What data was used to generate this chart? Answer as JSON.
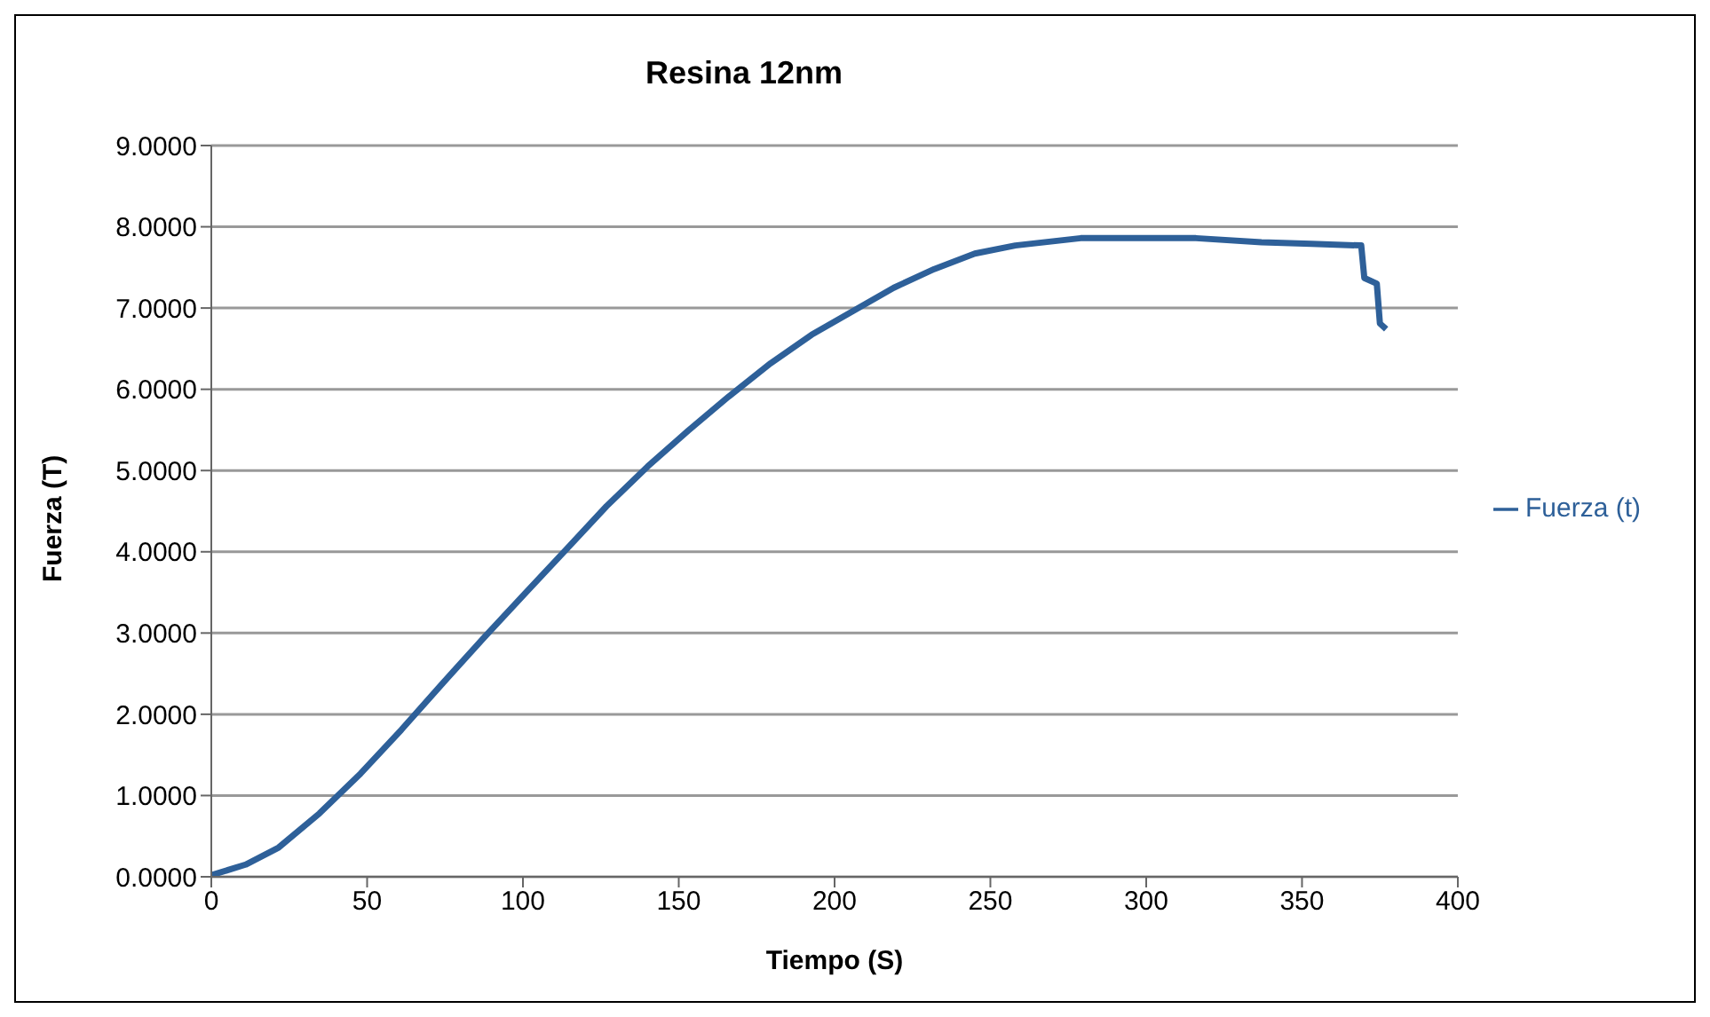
{
  "chart_data": {
    "type": "line",
    "title": "Resina 12nm",
    "xlabel": "Tiempo (S)",
    "ylabel": "Fuerza (T)",
    "xlim": [
      0,
      400
    ],
    "xticks": [
      0,
      50,
      100,
      150,
      200,
      250,
      300,
      350,
      400
    ],
    "ylim": [
      0,
      9
    ],
    "yticks": [
      {
        "value": 0,
        "label": "0.0000"
      },
      {
        "value": 1,
        "label": "1.0000"
      },
      {
        "value": 2,
        "label": "2.0000"
      },
      {
        "value": 3,
        "label": "3.0000"
      },
      {
        "value": 4,
        "label": "4.0000"
      },
      {
        "value": 5,
        "label": "5.0000"
      },
      {
        "value": 6,
        "label": "6.0000"
      },
      {
        "value": 7,
        "label": "7.0000"
      },
      {
        "value": 8,
        "label": "8.0000"
      },
      {
        "value": 9,
        "label": "9.0000"
      }
    ],
    "grid": "y",
    "legend": "right",
    "marker": "none",
    "line_style": "solid",
    "x": [
      0,
      11,
      21.6,
      34.7,
      47.9,
      61,
      74.2,
      87.4,
      100.5,
      113.7,
      126.8,
      140,
      153,
      166,
      179.5,
      192.6,
      205.8,
      219,
      232,
      245,
      258,
      279,
      316,
      337,
      353,
      369,
      370,
      374,
      375,
      377
    ],
    "series": [
      {
        "name": "Fuerza (t)",
        "color": "#2e6099",
        "values": [
          0.02,
          0.15,
          0.36,
          0.78,
          1.27,
          1.81,
          2.38,
          2.94,
          3.48,
          4.02,
          4.56,
          5.05,
          5.49,
          5.91,
          6.32,
          6.67,
          6.96,
          7.25,
          7.48,
          7.67,
          7.77,
          7.86,
          7.86,
          7.81,
          7.79,
          7.77,
          7.37,
          7.3,
          6.81,
          6.74
        ]
      }
    ]
  }
}
